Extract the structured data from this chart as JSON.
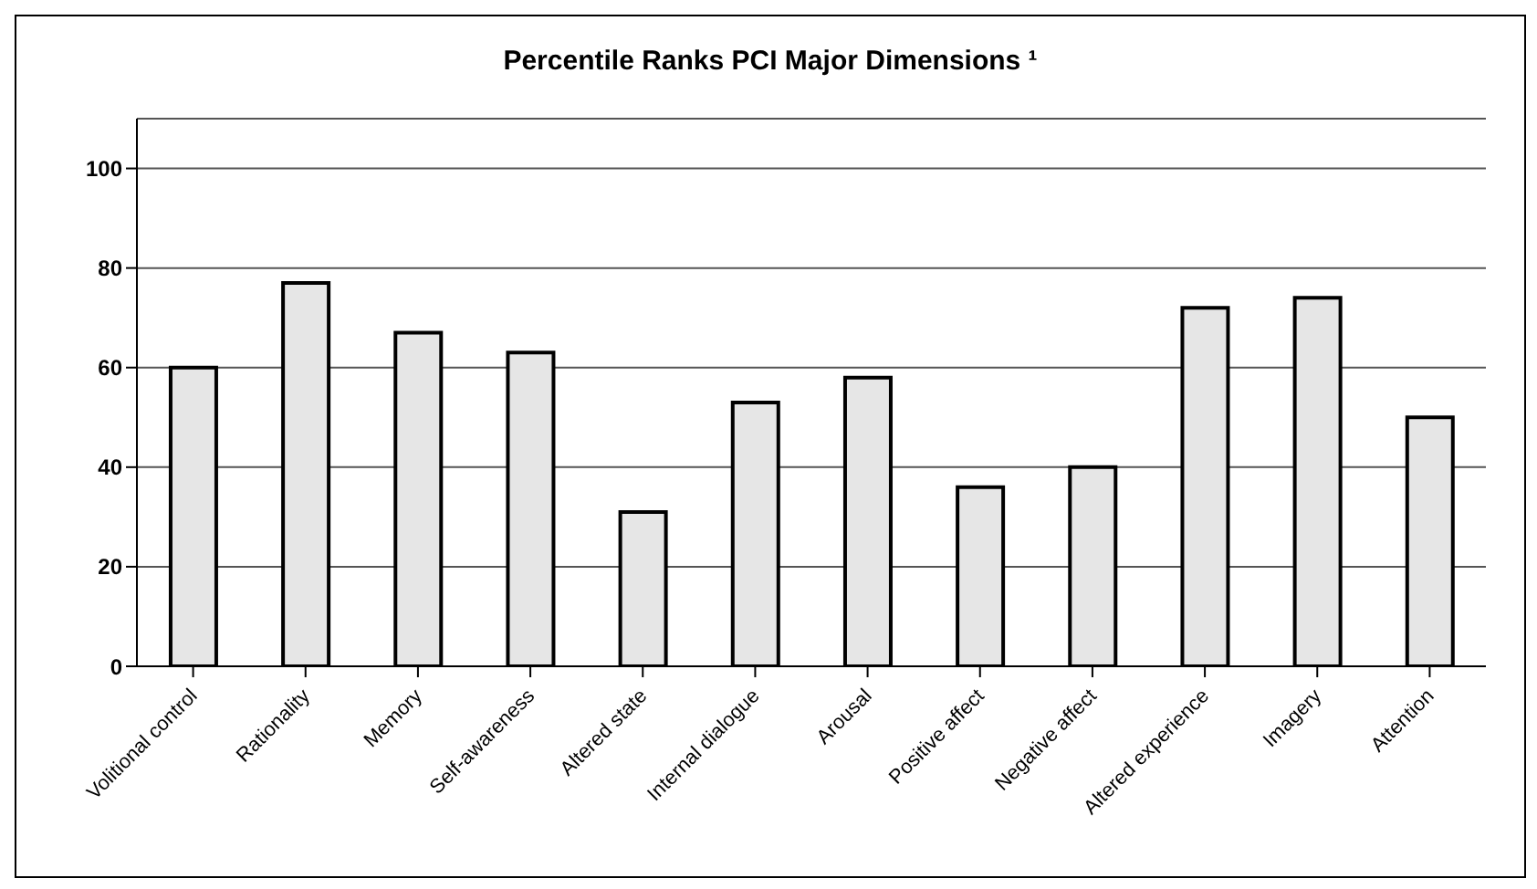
{
  "chart_data": {
    "type": "bar",
    "title": "Percentile Ranks PCI Major Dimensions ¹",
    "categories": [
      "Volitional control",
      "Rationality",
      "Memory",
      "Self-awareness",
      "Altered state",
      "Internal dialogue",
      "Arousal",
      "Positive affect",
      "Negative affect",
      "Altered experience",
      "Imagery",
      "Attention"
    ],
    "values": [
      60,
      77,
      67,
      63,
      31,
      53,
      58,
      36,
      40,
      72,
      74,
      50
    ],
    "color": "#e6e6e6",
    "ylim": [
      0,
      110
    ],
    "yticks": [
      0,
      20,
      40,
      60,
      80,
      100
    ],
    "grid": "y"
  }
}
